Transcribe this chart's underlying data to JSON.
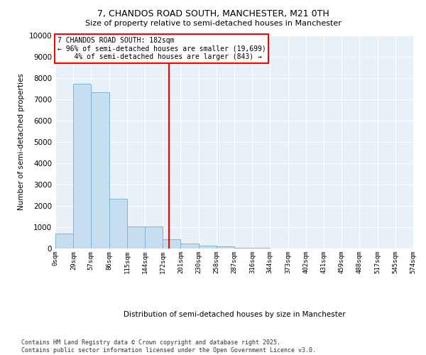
{
  "title1": "7, CHANDOS ROAD SOUTH, MANCHESTER, M21 0TH",
  "title2": "Size of property relative to semi-detached houses in Manchester",
  "xlabel": "Distribution of semi-detached houses by size in Manchester",
  "ylabel": "Number of semi-detached properties",
  "footnote": "Contains HM Land Registry data © Crown copyright and database right 2025.\nContains public sector information licensed under the Open Government Licence v3.0.",
  "bin_labels": [
    "0sqm",
    "29sqm",
    "57sqm",
    "86sqm",
    "115sqm",
    "144sqm",
    "172sqm",
    "201sqm",
    "230sqm",
    "258sqm",
    "287sqm",
    "316sqm",
    "344sqm",
    "373sqm",
    "402sqm",
    "431sqm",
    "459sqm",
    "488sqm",
    "517sqm",
    "545sqm",
    "574sqm"
  ],
  "bin_edges": [
    0,
    29,
    57,
    86,
    115,
    144,
    172,
    201,
    230,
    258,
    287,
    316,
    344,
    373,
    402,
    431,
    459,
    488,
    517,
    545,
    574
  ],
  "bar_heights": [
    700,
    7750,
    7350,
    2350,
    1050,
    1050,
    430,
    230,
    150,
    100,
    50,
    20,
    10,
    5,
    5,
    5,
    3,
    2,
    1,
    1
  ],
  "bar_color": "#c6dff0",
  "bar_edge_color": "#7eb5d4",
  "property_size": 182,
  "vline_color": "red",
  "ylim": [
    0,
    10000
  ],
  "yticks": [
    0,
    1000,
    2000,
    3000,
    4000,
    5000,
    6000,
    7000,
    8000,
    9000,
    10000
  ],
  "plot_bg_color": "#e8f0f8",
  "grid_color": "#ffffff"
}
